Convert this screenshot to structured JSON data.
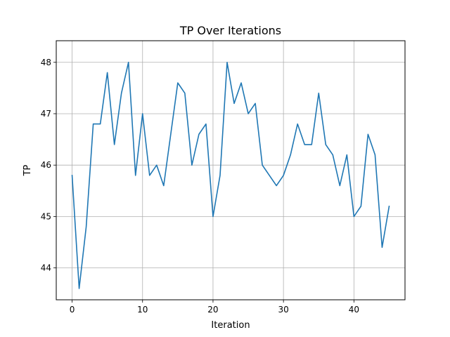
{
  "chart_data": {
    "type": "line",
    "title": "TP Over Iterations",
    "xlabel": "Iteration",
    "ylabel": "TP",
    "xlim": [
      -2.25,
      47.25
    ],
    "ylim": [
      43.38,
      48.42
    ],
    "x_ticks": [
      0,
      10,
      20,
      30,
      40
    ],
    "y_ticks": [
      44,
      45,
      46,
      47,
      48
    ],
    "grid": true,
    "line_color": "#1f77b4",
    "series": [
      {
        "x": [
          0,
          1,
          2,
          3,
          4,
          5,
          6,
          7,
          8,
          9,
          10,
          11,
          12,
          13,
          14,
          15,
          16,
          17,
          18,
          19,
          20,
          21,
          22,
          23,
          24,
          25,
          26,
          27,
          28,
          29,
          30,
          31,
          32,
          33,
          34,
          35,
          36,
          37,
          38,
          39,
          40,
          41,
          42,
          43,
          44,
          45
        ],
        "values": [
          45.8,
          43.6,
          44.8,
          46.8,
          46.8,
          47.8,
          46.4,
          47.4,
          48.0,
          45.8,
          47.0,
          45.8,
          46.0,
          45.6,
          46.6,
          47.6,
          47.4,
          46.0,
          46.6,
          46.8,
          45.0,
          45.8,
          48.0,
          47.2,
          47.6,
          47.0,
          47.2,
          46.0,
          45.8,
          45.6,
          45.8,
          46.2,
          46.8,
          46.4,
          46.4,
          47.4,
          46.4,
          46.2,
          45.6,
          46.2,
          45.0,
          45.2,
          46.6,
          46.2,
          44.4,
          45.2
        ]
      }
    ]
  }
}
